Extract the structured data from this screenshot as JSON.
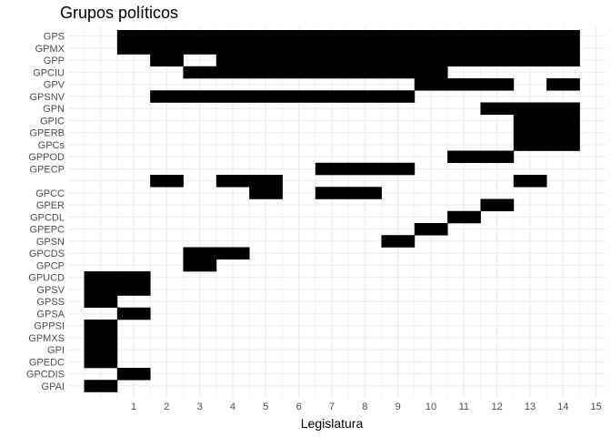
{
  "chart_data": {
    "type": "heatmap",
    "title": "Grupos políticos",
    "xlabel": "Legislatura",
    "ylabel": "",
    "x_ticks": [
      1,
      2,
      3,
      4,
      5,
      6,
      7,
      8,
      9,
      10,
      11,
      12,
      13,
      14,
      15
    ],
    "xlim": [
      -0.5,
      15.5
    ],
    "grid": true,
    "legend": "none",
    "fill_color": "#000000",
    "grid_color": "#ebebeb",
    "rows": [
      {
        "label": "GPS",
        "x": [
          1,
          2,
          3,
          4,
          5,
          6,
          7,
          8,
          9,
          10,
          11,
          12,
          13,
          14
        ]
      },
      {
        "label": "GPMX",
        "x": [
          1,
          2,
          3,
          4,
          5,
          6,
          7,
          8,
          9,
          10,
          11,
          12,
          13,
          14
        ]
      },
      {
        "label": "GPP",
        "x": [
          2,
          4,
          5,
          6,
          7,
          8,
          9,
          10,
          11,
          12,
          13,
          14
        ]
      },
      {
        "label": "GPCIU",
        "x": [
          3,
          4,
          5,
          6,
          7,
          8,
          9,
          10
        ]
      },
      {
        "label": "GPV",
        "x": [
          10,
          11,
          12,
          14
        ]
      },
      {
        "label": "GPSNV",
        "x": [
          2,
          3,
          4,
          5,
          6,
          7,
          8,
          9
        ]
      },
      {
        "label": "GPN",
        "x": [
          12,
          13,
          14
        ]
      },
      {
        "label": "GPIC",
        "x": [
          13,
          14
        ]
      },
      {
        "label": "GPERB",
        "x": [
          13,
          14
        ]
      },
      {
        "label": "GPCs",
        "x": [
          13,
          14
        ]
      },
      {
        "label": "GPPOD",
        "x": [
          11,
          12
        ]
      },
      {
        "label": "GPECP",
        "x": [
          7,
          8,
          9
        ]
      },
      {
        "label": "",
        "x": [
          2,
          4,
          5,
          13
        ]
      },
      {
        "label": "GPCC",
        "x": [
          5,
          7,
          8
        ]
      },
      {
        "label": "GPER",
        "x": [
          12
        ]
      },
      {
        "label": "GPCDL",
        "x": [
          11
        ]
      },
      {
        "label": "GPEPC",
        "x": [
          10
        ]
      },
      {
        "label": "GPSN",
        "x": [
          9
        ]
      },
      {
        "label": "GPCDS",
        "x": [
          3,
          4
        ]
      },
      {
        "label": "GPCP",
        "x": [
          3
        ]
      },
      {
        "label": "GPUCD",
        "x": [
          0,
          1
        ]
      },
      {
        "label": "GPSV",
        "x": [
          0,
          1
        ]
      },
      {
        "label": "GPSS",
        "x": [
          0
        ]
      },
      {
        "label": "GPSA",
        "x": [
          1
        ]
      },
      {
        "label": "GPPSI",
        "x": [
          0
        ]
      },
      {
        "label": "GPMXS",
        "x": [
          0
        ]
      },
      {
        "label": "GPI",
        "x": [
          0
        ]
      },
      {
        "label": "GPEDC",
        "x": [
          0
        ]
      },
      {
        "label": "GPCDIS",
        "x": [
          1
        ]
      },
      {
        "label": "GPAI",
        "x": [
          0
        ]
      }
    ]
  }
}
